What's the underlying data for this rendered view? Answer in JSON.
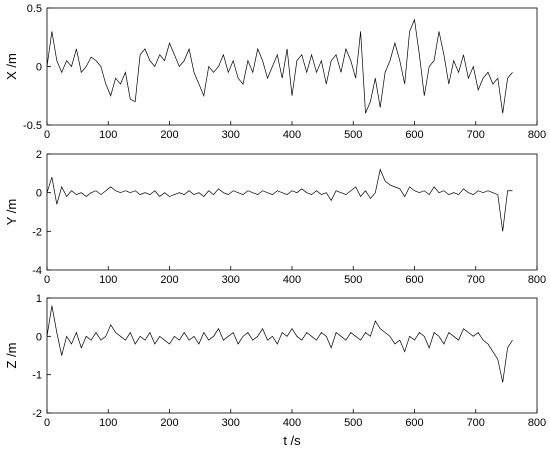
{
  "chart_data": [
    {
      "type": "line",
      "ylabel": "X /m",
      "x": [
        0,
        8,
        16,
        24,
        32,
        40,
        48,
        56,
        64,
        72,
        80,
        88,
        96,
        104,
        112,
        120,
        128,
        136,
        144,
        152,
        160,
        168,
        176,
        184,
        192,
        200,
        208,
        216,
        224,
        232,
        240,
        248,
        256,
        264,
        272,
        280,
        288,
        296,
        304,
        312,
        320,
        328,
        336,
        344,
        352,
        360,
        368,
        376,
        384,
        392,
        400,
        408,
        416,
        424,
        432,
        440,
        448,
        456,
        464,
        472,
        480,
        488,
        496,
        504,
        512,
        520,
        528,
        536,
        544,
        552,
        560,
        568,
        576,
        584,
        592,
        600,
        608,
        616,
        624,
        632,
        640,
        648,
        656,
        664,
        672,
        680,
        688,
        696,
        704,
        712,
        720,
        728,
        736,
        744,
        752,
        760
      ],
      "series": [
        {
          "color": "#000000",
          "values": [
            0,
            0.3,
            0.05,
            -0.05,
            0.05,
            0,
            0.15,
            -0.05,
            0,
            0.08,
            0.05,
            0,
            -0.15,
            -0.25,
            -0.1,
            -0.15,
            -0.05,
            -0.28,
            -0.3,
            0.1,
            0.15,
            0.05,
            0,
            0.1,
            0.05,
            0.2,
            0.1,
            0,
            0.05,
            0.15,
            -0.05,
            -0.15,
            -0.25,
            0,
            -0.05,
            0,
            0.1,
            -0.05,
            0.05,
            -0.1,
            -0.15,
            0.05,
            -0.05,
            0.15,
            0.05,
            -0.1,
            0,
            0.1,
            -0.1,
            0.15,
            -0.25,
            0.05,
            0.1,
            -0.05,
            0.1,
            -0.05,
            0.05,
            -0.15,
            0.05,
            0.1,
            -0.05,
            0.15,
            0.05,
            -0.1,
            0.3,
            -0.4,
            -0.3,
            -0.1,
            -0.35,
            -0.05,
            0.05,
            0.2,
            0.05,
            -0.15,
            0.3,
            0.4,
            0.1,
            -0.25,
            0,
            0.05,
            0.3,
            0.1,
            -0.15,
            0.05,
            -0.05,
            0.1,
            -0.1,
            0,
            -0.2,
            -0.1,
            -0.05,
            -0.15,
            -0.1,
            -0.4,
            -0.1,
            -0.05
          ]
        }
      ],
      "xlim": [
        0,
        800
      ],
      "xticks": [
        0,
        100,
        200,
        300,
        400,
        500,
        600,
        700,
        800
      ],
      "ylim": [
        -0.5,
        0.5
      ],
      "yticks": [
        {
          "value": -0.5,
          "label": "-0.5"
        },
        0,
        {
          "value": 0.5,
          "label": "0.5"
        }
      ]
    },
    {
      "type": "line",
      "ylabel": "Y /m",
      "x": [
        0,
        8,
        16,
        24,
        32,
        40,
        48,
        56,
        64,
        72,
        80,
        88,
        96,
        104,
        112,
        120,
        128,
        136,
        144,
        152,
        160,
        168,
        176,
        184,
        192,
        200,
        208,
        216,
        224,
        232,
        240,
        248,
        256,
        264,
        272,
        280,
        288,
        296,
        304,
        312,
        320,
        328,
        336,
        344,
        352,
        360,
        368,
        376,
        384,
        392,
        400,
        408,
        416,
        424,
        432,
        440,
        448,
        456,
        464,
        472,
        480,
        488,
        496,
        504,
        512,
        520,
        528,
        536,
        544,
        552,
        560,
        568,
        576,
        584,
        592,
        600,
        608,
        616,
        624,
        632,
        640,
        648,
        656,
        664,
        672,
        680,
        688,
        696,
        704,
        712,
        720,
        728,
        736,
        744,
        752,
        760
      ],
      "series": [
        {
          "color": "#000000",
          "values": [
            0,
            0.8,
            -0.6,
            0.3,
            -0.2,
            0.1,
            -0.1,
            0,
            -0.2,
            0,
            0.1,
            -0.1,
            0.1,
            0.3,
            0.1,
            0,
            0.1,
            0,
            0.1,
            -0.1,
            0,
            -0.1,
            0.1,
            -0.2,
            0,
            -0.2,
            -0.1,
            0,
            -0.1,
            0.1,
            -0.1,
            0,
            -0.2,
            0.1,
            -0.1,
            0.2,
            0,
            -0.1,
            0.1,
            0,
            -0.1,
            0.1,
            0,
            -0.1,
            0.1,
            0,
            -0.1,
            0.1,
            0,
            -0.1,
            0.1,
            0,
            0.2,
            0,
            -0.1,
            0.1,
            -0.1,
            0,
            -0.4,
            0.1,
            0,
            -0.1,
            0.1,
            0.3,
            -0.2,
            0.1,
            -0.3,
            0,
            1.2,
            0.6,
            0.4,
            0.3,
            0.2,
            -0.2,
            0.3,
            0.1,
            0,
            0.1,
            -0.1,
            0.3,
            0,
            0.1,
            -0.1,
            0,
            -0.1,
            0.2,
            0,
            -0.1,
            0.1,
            0,
            0.1,
            0,
            -0.1,
            -2,
            0.1,
            0.1
          ]
        }
      ],
      "xlim": [
        0,
        800
      ],
      "xticks": [
        0,
        100,
        200,
        300,
        400,
        500,
        600,
        700,
        800
      ],
      "ylim": [
        -4,
        2
      ],
      "yticks": [
        -4,
        -2,
        0,
        2
      ]
    },
    {
      "type": "line",
      "ylabel": "Z /m",
      "xlabel": "t /s",
      "x": [
        0,
        8,
        16,
        24,
        32,
        40,
        48,
        56,
        64,
        72,
        80,
        88,
        96,
        104,
        112,
        120,
        128,
        136,
        144,
        152,
        160,
        168,
        176,
        184,
        192,
        200,
        208,
        216,
        224,
        232,
        240,
        248,
        256,
        264,
        272,
        280,
        288,
        296,
        304,
        312,
        320,
        328,
        336,
        344,
        352,
        360,
        368,
        376,
        384,
        392,
        400,
        408,
        416,
        424,
        432,
        440,
        448,
        456,
        464,
        472,
        480,
        488,
        496,
        504,
        512,
        520,
        528,
        536,
        544,
        552,
        560,
        568,
        576,
        584,
        592,
        600,
        608,
        616,
        624,
        632,
        640,
        648,
        656,
        664,
        672,
        680,
        688,
        696,
        704,
        712,
        720,
        728,
        736,
        744,
        752,
        760
      ],
      "series": [
        {
          "color": "#000000",
          "values": [
            0,
            0.8,
            0.1,
            -0.5,
            0,
            -0.2,
            0.1,
            -0.3,
            0,
            -0.1,
            0.1,
            -0.1,
            0,
            0.3,
            0.1,
            0,
            -0.1,
            0.1,
            -0.2,
            0,
            -0.1,
            0.1,
            -0.2,
            0,
            -0.1,
            -0.2,
            0,
            -0.1,
            0.1,
            -0.1,
            0,
            -0.2,
            0.1,
            -0.1,
            0,
            0.2,
            -0.1,
            0,
            0.1,
            -0.2,
            0,
            0.1,
            -0.1,
            0,
            0.2,
            -0.1,
            0,
            -0.2,
            0.1,
            0,
            0.2,
            0,
            -0.1,
            0.1,
            0,
            -0.1,
            0.1,
            0,
            -0.3,
            0.1,
            0,
            -0.1,
            0.1,
            0,
            -0.1,
            0.1,
            0,
            0.4,
            0.2,
            0.1,
            0,
            -0.2,
            -0.1,
            -0.4,
            0,
            -0.1,
            0.1,
            0,
            -0.3,
            0.1,
            0,
            -0.2,
            0.1,
            0,
            -0.1,
            0.2,
            0.1,
            0,
            0.1,
            -0.1,
            -0.2,
            -0.4,
            -0.6,
            -1.2,
            -0.3,
            -0.1
          ]
        }
      ],
      "xlim": [
        0,
        800
      ],
      "xticks": [
        0,
        100,
        200,
        300,
        400,
        500,
        600,
        700,
        800
      ],
      "ylim": [
        -2,
        1
      ],
      "yticks": [
        -2,
        -1,
        0,
        1
      ]
    }
  ]
}
